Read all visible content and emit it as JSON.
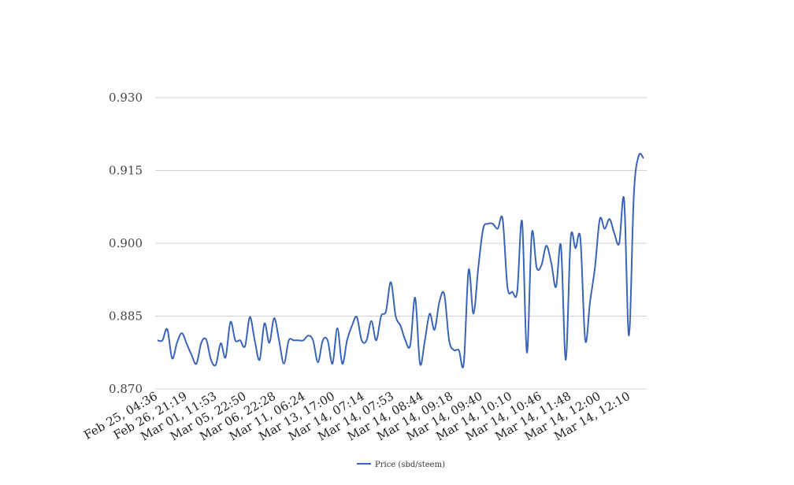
{
  "chart_data": {
    "type": "line",
    "title": "",
    "xlabel": "",
    "ylabel": "",
    "ylim": [
      0.87,
      0.93
    ],
    "yticks": [
      "0.870",
      "0.885",
      "0.900",
      "0.915",
      "0.930"
    ],
    "xticks": [
      "Feb 25, 04:36",
      "Feb 26, 21:19",
      "Mar 01, 11:53",
      "Mar 05, 22:50",
      "Mar 06, 22:28",
      "Mar 11, 06:24",
      "Mar 13, 17:00",
      "Mar 14, 07:14",
      "Mar 14, 07:53",
      "Mar 14, 08:44",
      "Mar 14, 09:18",
      "Mar 14, 09:40",
      "Mar 14, 10:10",
      "Mar 14, 10:46",
      "Mar 14, 11:48",
      "Mar 14, 12:00",
      "Mar 14, 12:10"
    ],
    "grid": true,
    "legend_position": "bottom-center",
    "colors": {
      "series": "#3a64b8",
      "grid": "#d0d0d0"
    },
    "series": [
      {
        "name": "Price (sbd/steem)",
        "values": [
          0.88,
          0.88,
          0.8823,
          0.8763,
          0.8795,
          0.8815,
          0.8793,
          0.877,
          0.8752,
          0.8795,
          0.8802,
          0.876,
          0.875,
          0.8794,
          0.8765,
          0.8838,
          0.88,
          0.88,
          0.8788,
          0.8848,
          0.88,
          0.876,
          0.8835,
          0.8795,
          0.8846,
          0.88,
          0.8752,
          0.88,
          0.88,
          0.88,
          0.88,
          0.881,
          0.88,
          0.8755,
          0.88,
          0.88,
          0.8752,
          0.8825,
          0.8752,
          0.88,
          0.883,
          0.8848,
          0.88,
          0.88,
          0.884,
          0.88,
          0.885,
          0.886,
          0.892,
          0.885,
          0.883,
          0.88,
          0.879,
          0.8888,
          0.8752,
          0.88,
          0.8855,
          0.8822,
          0.888,
          0.8895,
          0.88,
          0.878,
          0.878,
          0.8752,
          0.8945,
          0.8855,
          0.895,
          0.903,
          0.904,
          0.904,
          0.903,
          0.905,
          0.891,
          0.89,
          0.89,
          0.9045,
          0.8775,
          0.902,
          0.895,
          0.8955,
          0.8995,
          0.896,
          0.891,
          0.8995,
          0.876,
          0.901,
          0.899,
          0.901,
          0.88,
          0.888,
          0.895,
          0.905,
          0.903,
          0.905,
          0.902,
          0.9,
          0.909,
          0.881,
          0.91,
          0.918,
          0.9175
        ]
      }
    ]
  }
}
